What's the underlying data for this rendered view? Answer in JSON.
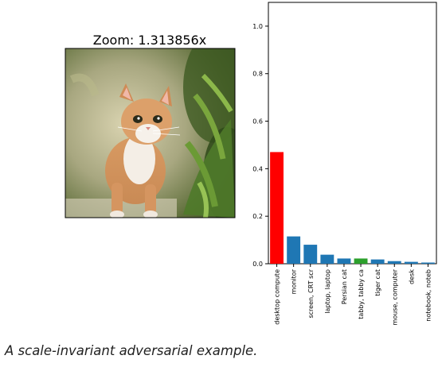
{
  "image_panel": {
    "title": "Zoom: 1.313856x",
    "image_subject": "orange-and-white kitten walking among green leaves"
  },
  "caption": "A scale-invariant adversarial example.",
  "colors": {
    "top_class": "#ff0000",
    "true_class": "#2ca02c",
    "default_bar": "#1f77b4",
    "axis": "#000000"
  },
  "chart_data": {
    "type": "bar",
    "categories": [
      "desktop compute",
      "monitor",
      "screen, CRT scr",
      "laptop, laptop",
      "Persian cat",
      "tabby, tabby ca",
      "tiger cat",
      "mouse, computer",
      "desk",
      "notebook, noteb"
    ],
    "values": [
      0.47,
      0.115,
      0.08,
      0.038,
      0.022,
      0.022,
      0.018,
      0.011,
      0.008,
      0.005
    ],
    "bar_colors": [
      "#ff0000",
      "#1f77b4",
      "#1f77b4",
      "#1f77b4",
      "#1f77b4",
      "#2ca02c",
      "#1f77b4",
      "#1f77b4",
      "#1f77b4",
      "#1f77b4"
    ],
    "ylim": [
      0,
      1.1
    ],
    "yticks": [
      "0.0",
      "0.2",
      "0.4",
      "0.6",
      "0.8",
      "1.0"
    ],
    "ytick_values": [
      0,
      0.2,
      0.4,
      0.6,
      0.8,
      1.0
    ],
    "grid": false,
    "title": "",
    "xlabel": "",
    "ylabel": ""
  }
}
